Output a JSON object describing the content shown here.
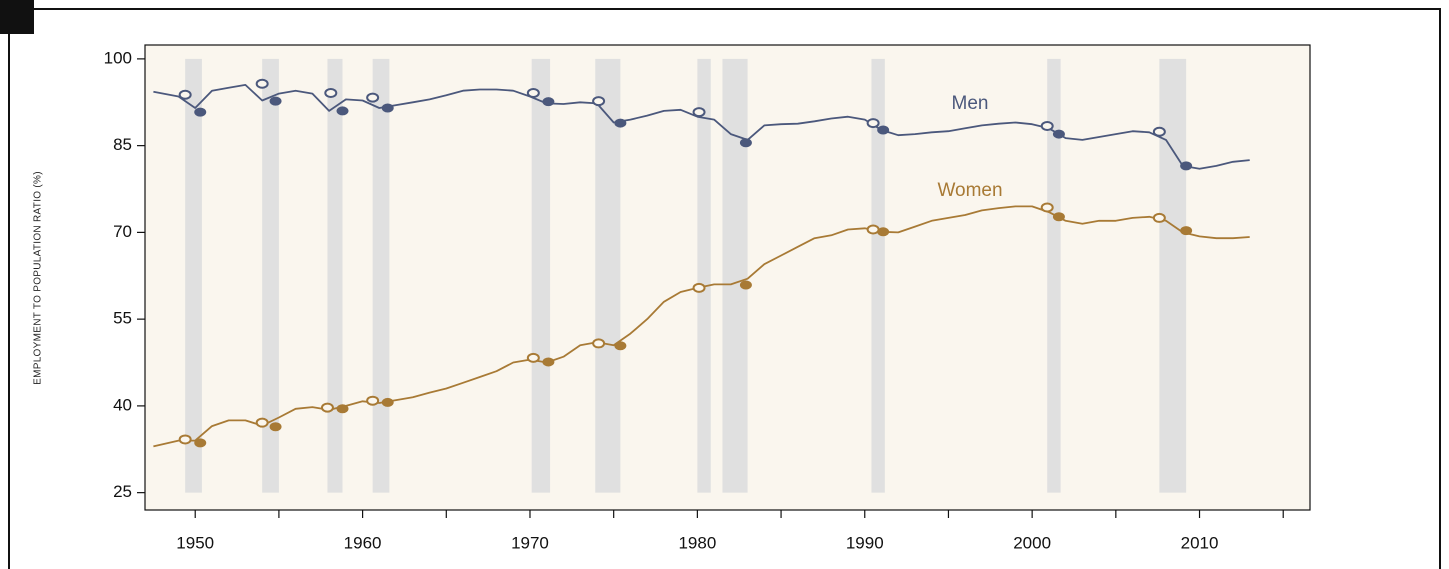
{
  "chart_data": {
    "type": "line",
    "y_label": "EMPLOYMENT TO POPULATION RATIO (%)",
    "xlim": [
      1947,
      2016.6
    ],
    "ylim": [
      22,
      102.4
    ],
    "xticks": [
      1950,
      1960,
      1970,
      1980,
      1990,
      2000,
      2010
    ],
    "x_minor_ticks": [
      1955,
      1965,
      1975,
      1985,
      1995,
      2005,
      2015
    ],
    "yticks": [
      25,
      40,
      55,
      70,
      85,
      100
    ],
    "background": "#faf6ee",
    "recession_color": "#e0e0e0",
    "recessions": [
      [
        1949.4,
        1950.4
      ],
      [
        1954.0,
        1955.0
      ],
      [
        1957.9,
        1958.8
      ],
      [
        1960.6,
        1961.6
      ],
      [
        1970.1,
        1971.2
      ],
      [
        1973.9,
        1975.4
      ],
      [
        1980.0,
        1980.8
      ],
      [
        1981.5,
        1983.0
      ],
      [
        1990.4,
        1991.2
      ],
      [
        2000.9,
        2001.7
      ],
      [
        2007.6,
        2009.2
      ]
    ],
    "x": [
      1947.5,
      1949,
      1950,
      1951,
      1952,
      1953,
      1954,
      1955,
      1956,
      1957,
      1958,
      1959,
      1960,
      1961,
      1962,
      1963,
      1964,
      1965,
      1966,
      1967,
      1968,
      1969,
      1970,
      1971,
      1972,
      1973,
      1974,
      1975,
      1976,
      1977,
      1978,
      1979,
      1980,
      1981,
      1982,
      1983,
      1984,
      1985,
      1986,
      1987,
      1988,
      1989,
      1990,
      1991,
      1992,
      1993,
      1994,
      1995,
      1996,
      1997,
      1998,
      1999,
      2000,
      2001,
      2002,
      2003,
      2004,
      2005,
      2006,
      2007,
      2008,
      2009,
      2010,
      2011,
      2012,
      2013
    ],
    "series": [
      {
        "name": "Men",
        "color": "#4b587c",
        "values": [
          94.3,
          93.5,
          91.5,
          94.5,
          95,
          95.5,
          92.8,
          94,
          94.5,
          94,
          91,
          93,
          92.8,
          91.5,
          92,
          92.5,
          93,
          93.7,
          94.5,
          94.7,
          94.7,
          94.5,
          93.5,
          92.3,
          92.2,
          92.5,
          92.3,
          89,
          89.5,
          90.2,
          91,
          91.2,
          90,
          89.5,
          87,
          86,
          88.5,
          88.7,
          88.8,
          89.2,
          89.7,
          90,
          89.5,
          87.7,
          86.8,
          87,
          87.3,
          87.5,
          88,
          88.5,
          88.8,
          89,
          88.7,
          88,
          86.3,
          86,
          86.5,
          87,
          87.5,
          87.3,
          86,
          81.5,
          81,
          81.5,
          82.2,
          82.5
        ],
        "peak_x": [
          1949.4,
          1954.0,
          1958.1,
          1960.6,
          1970.2,
          1974.1,
          1980.1,
          1990.5,
          2000.9,
          2007.6
        ],
        "peak_values": [
          93.8,
          95.7,
          94.1,
          93.3,
          94.1,
          92.7,
          90.8,
          88.9,
          88.4,
          87.4
        ],
        "trough_x": [
          1950.3,
          1954.8,
          1958.8,
          1961.5,
          1971.1,
          1975.4,
          1982.9,
          1991.1,
          2001.6,
          2009.2
        ],
        "trough_values": [
          90.8,
          92.7,
          91.0,
          91.5,
          92.6,
          88.9,
          85.5,
          87.7,
          87.0,
          81.5
        ]
      },
      {
        "name": "Women",
        "color": "#a87a35",
        "values": [
          33,
          34,
          34,
          36.5,
          37.5,
          37.5,
          36.6,
          38,
          39.5,
          39.8,
          39.3,
          40,
          40.8,
          40.5,
          41,
          41.5,
          42.3,
          43,
          44,
          45,
          46,
          47.5,
          48,
          47.5,
          48.5,
          50.5,
          51,
          50.5,
          52.5,
          55,
          58,
          59.7,
          60.4,
          61,
          61,
          62,
          64.5,
          66,
          67.5,
          69,
          69.5,
          70.5,
          70.7,
          70.1,
          70,
          71,
          72,
          72.5,
          73,
          73.8,
          74.2,
          74.5,
          74.5,
          73.5,
          72,
          71.5,
          72,
          72,
          72.5,
          72.7,
          72,
          70,
          69.3,
          69,
          69,
          69.2
        ],
        "peak_x": [
          1949.4,
          1954.0,
          1957.9,
          1960.6,
          1970.2,
          1974.1,
          1980.1,
          1990.5,
          2000.9,
          2007.6
        ],
        "peak_values": [
          34.2,
          37.1,
          39.7,
          40.9,
          48.3,
          50.8,
          60.4,
          70.5,
          74.3,
          72.5
        ],
        "trough_x": [
          1950.3,
          1954.8,
          1958.8,
          1961.5,
          1971.1,
          1975.4,
          1982.9,
          1991.1,
          2001.6,
          2009.2
        ],
        "trough_values": [
          33.6,
          36.4,
          39.5,
          40.6,
          47.6,
          50.4,
          60.9,
          70.1,
          72.7,
          70.3
        ]
      }
    ]
  }
}
